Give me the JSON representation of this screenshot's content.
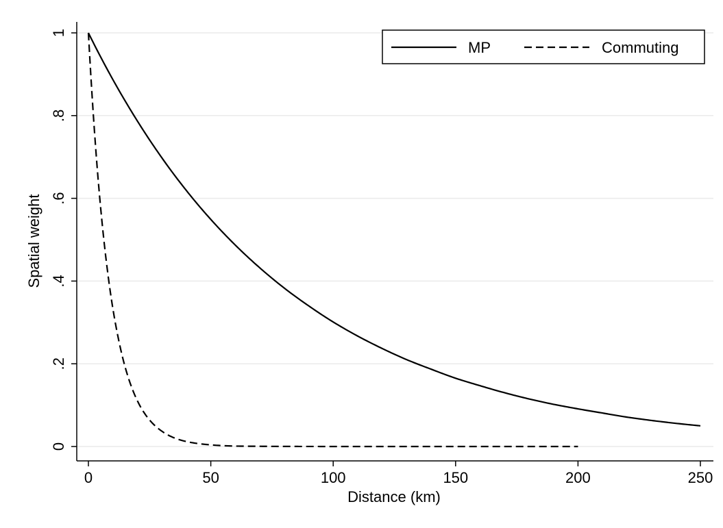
{
  "chart_data": {
    "type": "line",
    "xlabel": "Distance (km)",
    "ylabel": "Spatial weight",
    "xlim": [
      0,
      250
    ],
    "ylim": [
      0,
      1
    ],
    "x_ticks": [
      0,
      50,
      100,
      150,
      200,
      250
    ],
    "x_tick_labels": [
      "0",
      "50",
      "100",
      "150",
      "200",
      "250"
    ],
    "y_ticks": [
      0,
      0.2,
      0.4,
      0.6,
      0.8,
      1
    ],
    "y_tick_labels": [
      "0",
      ".2",
      ".4",
      ".6",
      ".8",
      "1"
    ],
    "grid": "horizontal",
    "legend_position": "top-right",
    "series": [
      {
        "name": "MP",
        "style": "solid",
        "color": "#000000",
        "x": [
          0,
          10,
          20,
          30,
          40,
          50,
          60,
          70,
          80,
          90,
          100,
          110,
          120,
          130,
          140,
          150,
          160,
          170,
          180,
          190,
          200,
          210,
          220,
          230,
          240,
          250
        ],
        "y": [
          1.0,
          0.887,
          0.787,
          0.698,
          0.619,
          0.549,
          0.487,
          0.432,
          0.383,
          0.34,
          0.301,
          0.267,
          0.237,
          0.21,
          0.187,
          0.165,
          0.147,
          0.13,
          0.115,
          0.102,
          0.091,
          0.081,
          0.071,
          0.063,
          0.056,
          0.05
        ]
      },
      {
        "name": "Commuting",
        "style": "dashed",
        "color": "#000000",
        "x": [
          0,
          2,
          4,
          6,
          8,
          10,
          12,
          15,
          18,
          21,
          25,
          30,
          35,
          40,
          45,
          50,
          60,
          70,
          80,
          100,
          120,
          150,
          200
        ],
        "y": [
          1.0,
          0.803,
          0.644,
          0.517,
          0.415,
          0.333,
          0.268,
          0.192,
          0.138,
          0.099,
          0.064,
          0.037,
          0.021,
          0.012,
          0.007,
          0.004,
          0.001,
          0.0005,
          0.0002,
          0.0,
          0.0,
          0.0,
          0.0
        ]
      }
    ]
  }
}
